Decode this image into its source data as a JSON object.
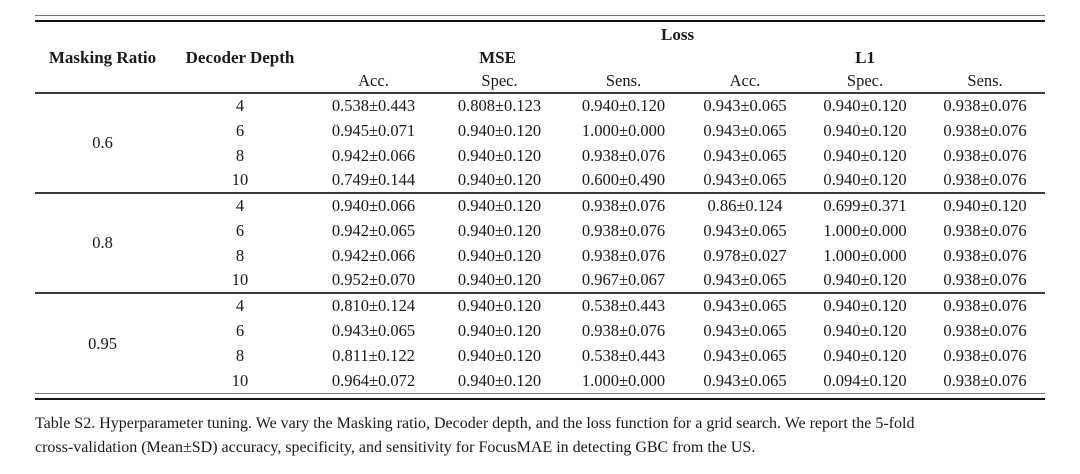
{
  "table": {
    "header": {
      "col1": "Masking Ratio",
      "col2": "Decoder Depth",
      "loss_label": "Loss",
      "loss_groups": [
        {
          "label": "MSE"
        },
        {
          "label": "L1"
        }
      ],
      "metric_labels": [
        "Acc.",
        "Spec.",
        "Sens.",
        "Acc.",
        "Spec.",
        "Sens."
      ]
    },
    "groups": [
      {
        "masking_ratio": "0.6",
        "rows": [
          {
            "decoder_depth": "4",
            "values": [
              "0.538±0.443",
              "0.808±0.123",
              "0.940±0.120",
              "0.943±0.065",
              "0.940±0.120",
              "0.938±0.076"
            ]
          },
          {
            "decoder_depth": "6",
            "values": [
              "0.945±0.071",
              "0.940±0.120",
              "1.000±0.000",
              "0.943±0.065",
              "0.940±0.120",
              "0.938±0.076"
            ]
          },
          {
            "decoder_depth": "8",
            "values": [
              "0.942±0.066",
              "0.940±0.120",
              "0.938±0.076",
              "0.943±0.065",
              "0.940±0.120",
              "0.938±0.076"
            ]
          },
          {
            "decoder_depth": "10",
            "values": [
              "0.749±0.144",
              "0.940±0.120",
              "0.600±0.490",
              "0.943±0.065",
              "0.940±0.120",
              "0.938±0.076"
            ]
          }
        ]
      },
      {
        "masking_ratio": "0.8",
        "rows": [
          {
            "decoder_depth": "4",
            "values": [
              "0.940±0.066",
              "0.940±0.120",
              "0.938±0.076",
              "0.86±0.124",
              "0.699±0.371",
              "0.940±0.120"
            ]
          },
          {
            "decoder_depth": "6",
            "values": [
              "0.942±0.065",
              "0.940±0.120",
              "0.938±0.076",
              "0.943±0.065",
              "1.000±0.000",
              "0.938±0.076"
            ]
          },
          {
            "decoder_depth": "8",
            "values": [
              "0.942±0.066",
              "0.940±0.120",
              "0.938±0.076",
              "0.978±0.027",
              "1.000±0.000",
              "0.938±0.076"
            ]
          },
          {
            "decoder_depth": "10",
            "values": [
              "0.952±0.070",
              "0.940±0.120",
              "0.967±0.067",
              "0.943±0.065",
              "0.940±0.120",
              "0.938±0.076"
            ]
          }
        ]
      },
      {
        "masking_ratio": "0.95",
        "rows": [
          {
            "decoder_depth": "4",
            "values": [
              "0.810±0.124",
              "0.940±0.120",
              "0.538±0.443",
              "0.943±0.065",
              "0.940±0.120",
              "0.938±0.076"
            ]
          },
          {
            "decoder_depth": "6",
            "values": [
              "0.943±0.065",
              "0.940±0.120",
              "0.938±0.076",
              "0.943±0.065",
              "0.940±0.120",
              "0.938±0.076"
            ]
          },
          {
            "decoder_depth": "8",
            "values": [
              "0.811±0.122",
              "0.940±0.120",
              "0.538±0.443",
              "0.943±0.065",
              "0.940±0.120",
              "0.938±0.076"
            ]
          },
          {
            "decoder_depth": "10",
            "values": [
              "0.964±0.072",
              "0.940±0.120",
              "1.000±0.000",
              "0.943±0.065",
              "0.094±0.120",
              "0.938±0.076"
            ]
          }
        ]
      }
    ]
  },
  "caption": {
    "lines": [
      "Table S2. Hyperparameter tuning. We vary the Masking ratio, Decoder depth, and the loss function for a grid search. We report the 5-fold",
      "cross-validation (Mean±SD) accuracy, specificity, and sensitivity for FocusMAE in detecting GBC from the US."
    ]
  }
}
